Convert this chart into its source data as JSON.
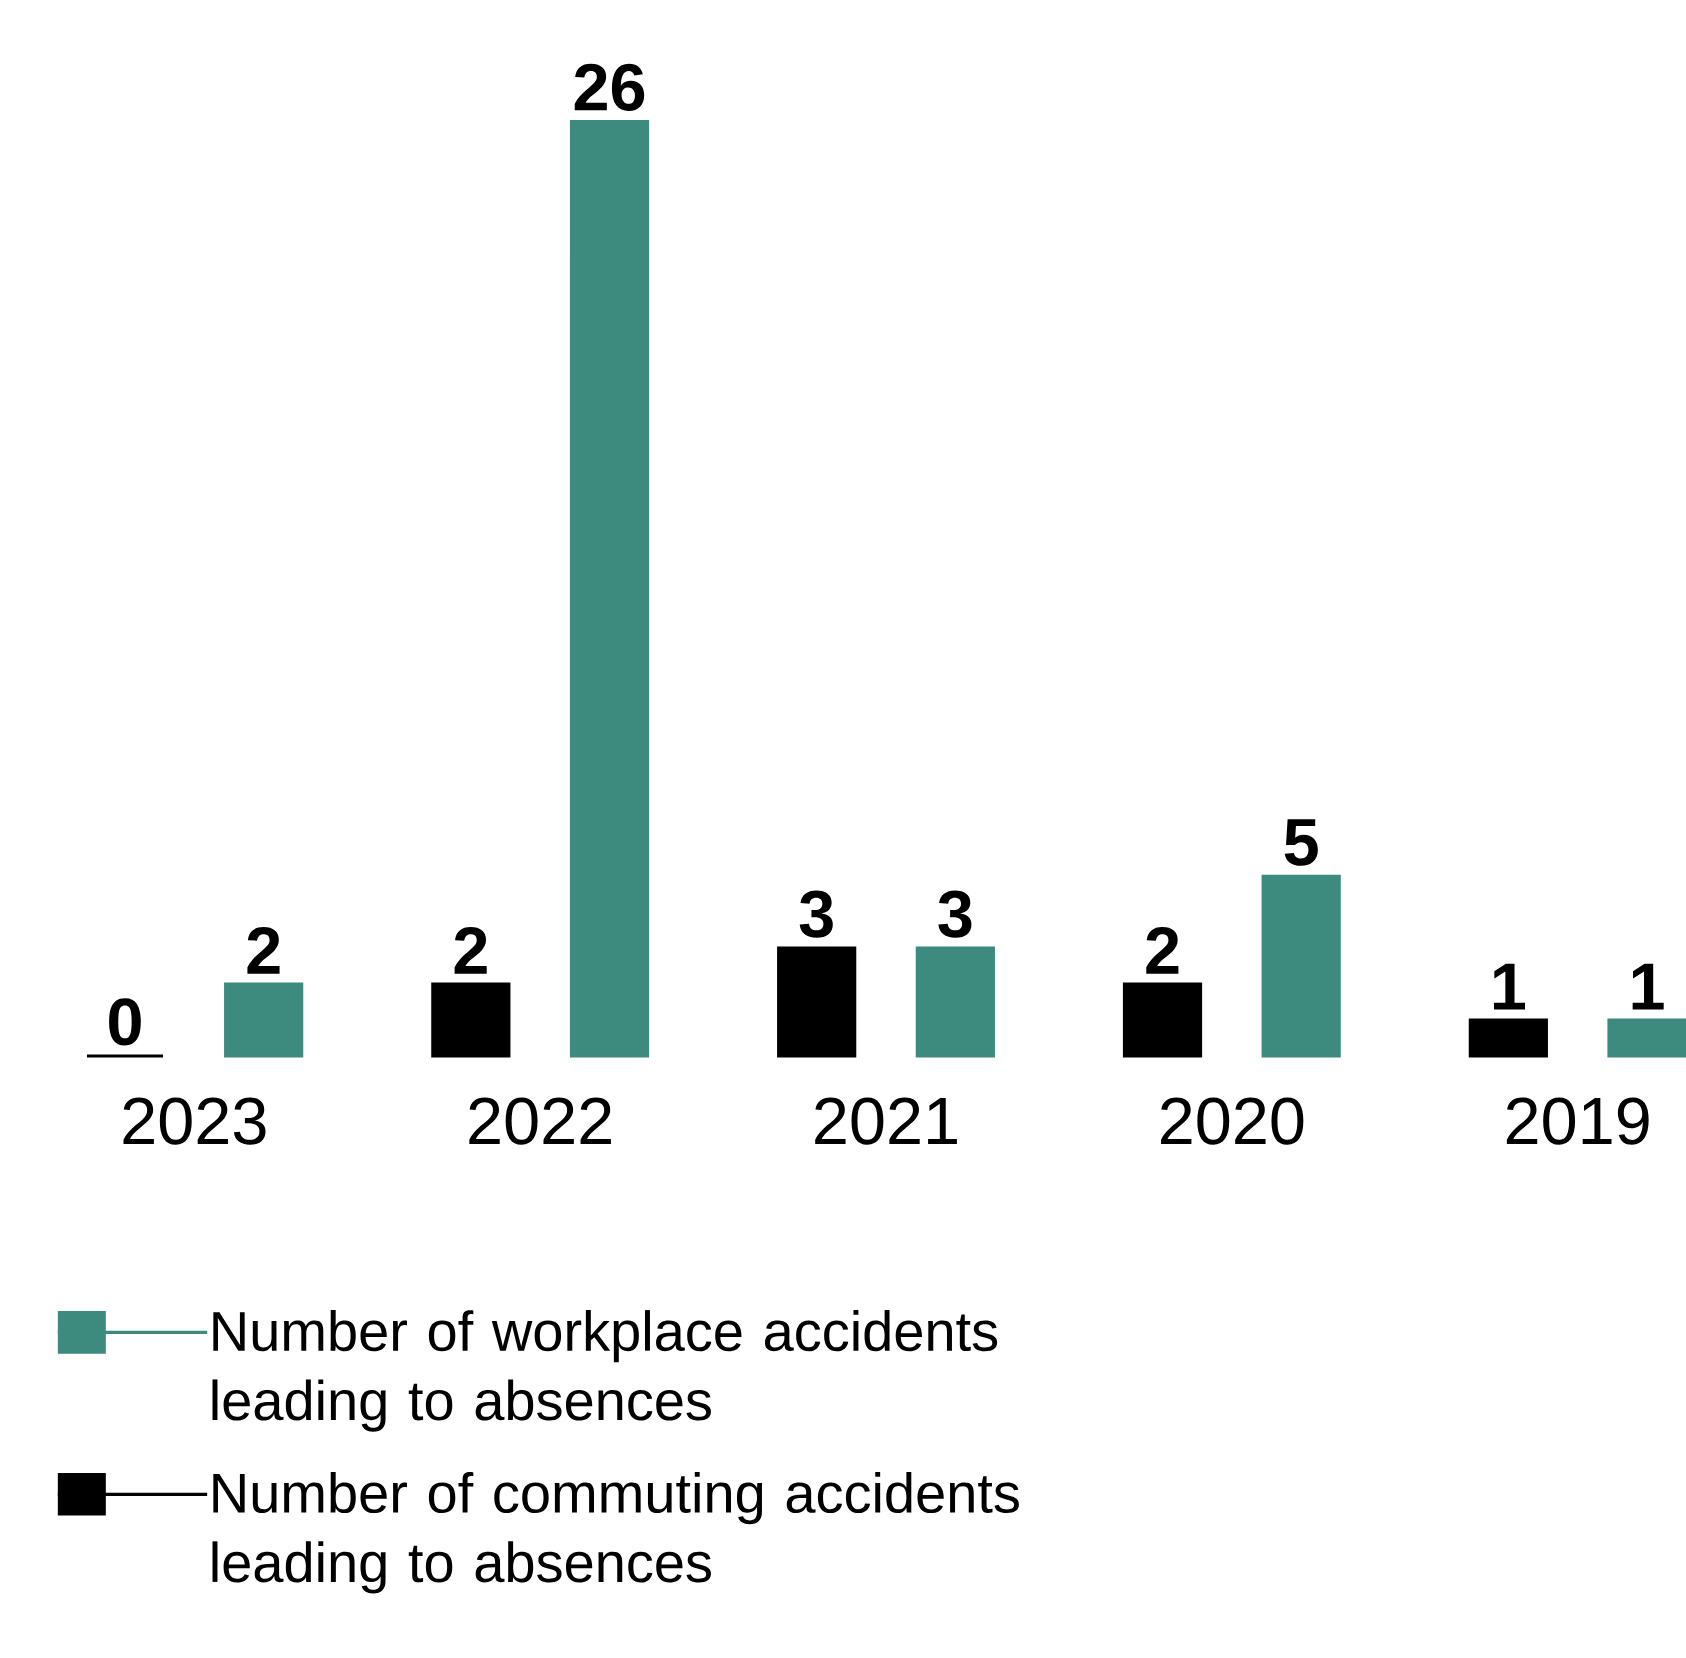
{
  "chart_data": {
    "type": "bar",
    "categories": [
      "2023",
      "2022",
      "2021",
      "2020",
      "2019"
    ],
    "series": [
      {
        "name": "Number of commuting accidents leading to absences",
        "color": "#000000",
        "values": [
          0,
          2,
          3,
          2,
          1
        ]
      },
      {
        "name": "Number of workplace accidents leading to absences",
        "color": "#3d8b7e",
        "values": [
          2,
          26,
          3,
          5,
          1
        ]
      }
    ],
    "data_labels": true,
    "legend": "bottom"
  }
}
